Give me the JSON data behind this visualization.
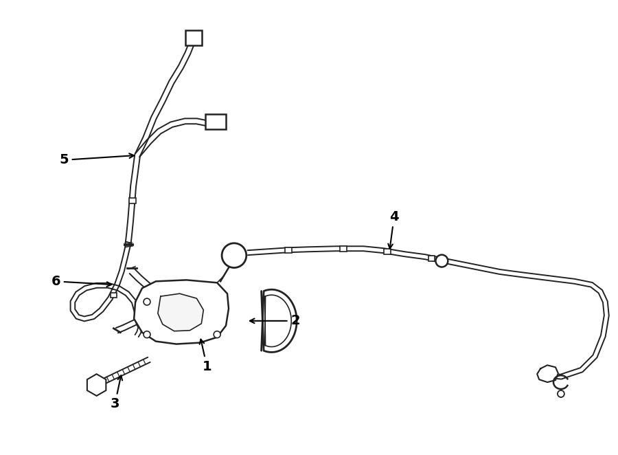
{
  "bg_color": "#ffffff",
  "line_color": "#222222",
  "fig_width": 9.0,
  "fig_height": 6.62,
  "dpi": 100
}
